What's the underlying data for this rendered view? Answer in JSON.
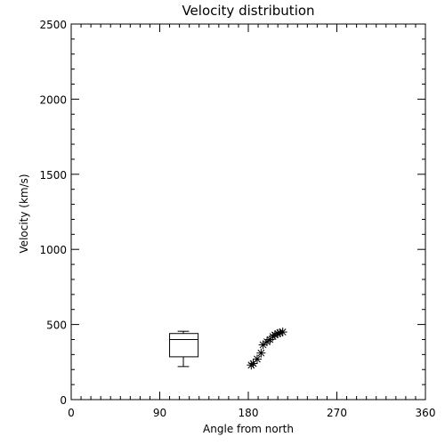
{
  "chart_data": {
    "type": "scatter",
    "title": "Velocity distribution",
    "xlabel": "Angle from north",
    "ylabel": "Velocity (km/s)",
    "xlim": [
      0,
      360
    ],
    "ylim": [
      0,
      2500
    ],
    "x_ticks": [
      0,
      90,
      180,
      270,
      360
    ],
    "x_tick_labels": [
      "0",
      "90",
      "180",
      "270",
      "360"
    ],
    "y_ticks": [
      0,
      500,
      1000,
      1500,
      2000,
      2500
    ],
    "y_tick_labels": [
      "0",
      "500",
      "1000",
      "1500",
      "2000",
      "2500"
    ],
    "grid": false,
    "legend": "none",
    "series": [
      {
        "marker": "asterisk",
        "points": [
          {
            "x": 183,
            "y": 230
          },
          {
            "x": 185,
            "y": 240
          },
          {
            "x": 189,
            "y": 270
          },
          {
            "x": 193,
            "y": 310
          },
          {
            "x": 195,
            "y": 365
          },
          {
            "x": 199,
            "y": 385
          },
          {
            "x": 202,
            "y": 400
          },
          {
            "x": 205,
            "y": 420
          },
          {
            "x": 207,
            "y": 430
          },
          {
            "x": 210,
            "y": 440
          },
          {
            "x": 212,
            "y": 445
          },
          {
            "x": 215,
            "y": 450
          }
        ]
      }
    ],
    "boxplot": {
      "x_center": 114,
      "x_left": 100,
      "x_right": 129,
      "whisker_low": 220,
      "q1": 285,
      "median": 400,
      "q3": 440,
      "whisker_high": 455
    }
  }
}
